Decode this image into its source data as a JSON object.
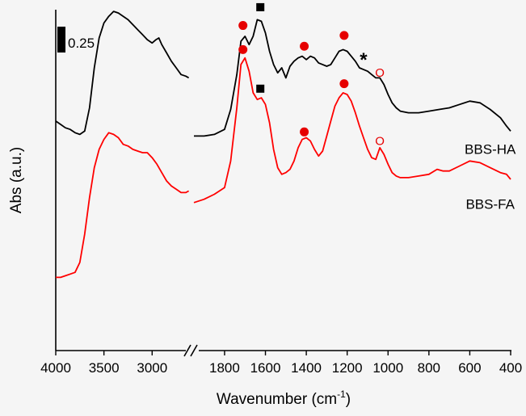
{
  "chart_data": {
    "type": "line",
    "xlabel": "Wavenumber (cm",
    "xlabel_sup": "-1",
    "xlabel_tail": ")",
    "ylabel": "Abs (a.u.)",
    "x_reversed": true,
    "x_break": [
      2600,
      1950
    ],
    "x_segments": [
      {
        "xlim": [
          4000,
          2600
        ],
        "ticks": [
          4000,
          3500,
          3000
        ]
      },
      {
        "xlim": [
          1950,
          400
        ],
        "ticks": [
          1800,
          1600,
          1400,
          1200,
          1000,
          800,
          600,
          400
        ]
      }
    ],
    "y_ticks_shown": false,
    "scale_bar": {
      "label": "0.25",
      "value": 0.25
    },
    "ylim": [
      0.0,
      2.05
    ],
    "series": [
      {
        "name": "BBS-HA",
        "color": "#000000",
        "points": [
          [
            4000,
            1.38
          ],
          [
            3950,
            1.36
          ],
          [
            3900,
            1.34
          ],
          [
            3850,
            1.33
          ],
          [
            3800,
            1.31
          ],
          [
            3750,
            1.3
          ],
          [
            3700,
            1.32
          ],
          [
            3650,
            1.46
          ],
          [
            3600,
            1.7
          ],
          [
            3550,
            1.88
          ],
          [
            3500,
            1.97
          ],
          [
            3450,
            2.01
          ],
          [
            3400,
            2.04
          ],
          [
            3350,
            2.03
          ],
          [
            3300,
            2.01
          ],
          [
            3250,
            1.99
          ],
          [
            3200,
            1.96
          ],
          [
            3150,
            1.93
          ],
          [
            3100,
            1.9
          ],
          [
            3050,
            1.87
          ],
          [
            3000,
            1.85
          ],
          [
            2960,
            1.87
          ],
          [
            2930,
            1.88
          ],
          [
            2900,
            1.84
          ],
          [
            2850,
            1.79
          ],
          [
            2800,
            1.74
          ],
          [
            2750,
            1.7
          ],
          [
            2700,
            1.66
          ],
          [
            2650,
            1.65
          ],
          [
            2620,
            1.64
          ],
          [
            1950,
            1.29
          ],
          [
            1900,
            1.29
          ],
          [
            1850,
            1.3
          ],
          [
            1800,
            1.33
          ],
          [
            1770,
            1.45
          ],
          [
            1740,
            1.66
          ],
          [
            1720,
            1.86
          ],
          [
            1700,
            1.89
          ],
          [
            1680,
            1.84
          ],
          [
            1660,
            1.89
          ],
          [
            1640,
            1.99
          ],
          [
            1620,
            1.98
          ],
          [
            1600,
            1.91
          ],
          [
            1580,
            1.8
          ],
          [
            1560,
            1.72
          ],
          [
            1540,
            1.67
          ],
          [
            1520,
            1.7
          ],
          [
            1500,
            1.64
          ],
          [
            1480,
            1.71
          ],
          [
            1460,
            1.74
          ],
          [
            1440,
            1.76
          ],
          [
            1420,
            1.77
          ],
          [
            1400,
            1.75
          ],
          [
            1380,
            1.77
          ],
          [
            1360,
            1.76
          ],
          [
            1340,
            1.73
          ],
          [
            1320,
            1.72
          ],
          [
            1300,
            1.71
          ],
          [
            1280,
            1.72
          ],
          [
            1260,
            1.76
          ],
          [
            1240,
            1.8
          ],
          [
            1220,
            1.81
          ],
          [
            1200,
            1.8
          ],
          [
            1180,
            1.77
          ],
          [
            1160,
            1.74
          ],
          [
            1140,
            1.7
          ],
          [
            1120,
            1.69
          ],
          [
            1100,
            1.68
          ],
          [
            1080,
            1.66
          ],
          [
            1060,
            1.64
          ],
          [
            1040,
            1.64
          ],
          [
            1020,
            1.6
          ],
          [
            1000,
            1.54
          ],
          [
            980,
            1.49
          ],
          [
            960,
            1.46
          ],
          [
            940,
            1.44
          ],
          [
            900,
            1.43
          ],
          [
            850,
            1.43
          ],
          [
            800,
            1.44
          ],
          [
            750,
            1.45
          ],
          [
            700,
            1.46
          ],
          [
            650,
            1.48
          ],
          [
            600,
            1.5
          ],
          [
            550,
            1.49
          ],
          [
            500,
            1.45
          ],
          [
            450,
            1.4
          ],
          [
            420,
            1.35
          ],
          [
            400,
            1.32
          ]
        ]
      },
      {
        "name": "BBS-FA",
        "color": "#ff0000",
        "points": [
          [
            4000,
            0.44
          ],
          [
            3950,
            0.44
          ],
          [
            3900,
            0.45
          ],
          [
            3850,
            0.46
          ],
          [
            3800,
            0.47
          ],
          [
            3750,
            0.53
          ],
          [
            3700,
            0.7
          ],
          [
            3650,
            0.92
          ],
          [
            3600,
            1.1
          ],
          [
            3550,
            1.21
          ],
          [
            3500,
            1.27
          ],
          [
            3450,
            1.31
          ],
          [
            3400,
            1.3
          ],
          [
            3350,
            1.28
          ],
          [
            3300,
            1.24
          ],
          [
            3250,
            1.23
          ],
          [
            3200,
            1.21
          ],
          [
            3150,
            1.2
          ],
          [
            3100,
            1.19
          ],
          [
            3050,
            1.19
          ],
          [
            3000,
            1.16
          ],
          [
            2950,
            1.12
          ],
          [
            2900,
            1.07
          ],
          [
            2850,
            1.02
          ],
          [
            2800,
            0.99
          ],
          [
            2750,
            0.97
          ],
          [
            2700,
            0.95
          ],
          [
            2650,
            0.95
          ],
          [
            2620,
            0.96
          ],
          [
            1950,
            0.89
          ],
          [
            1900,
            0.91
          ],
          [
            1850,
            0.94
          ],
          [
            1800,
            0.98
          ],
          [
            1770,
            1.14
          ],
          [
            1740,
            1.46
          ],
          [
            1720,
            1.72
          ],
          [
            1700,
            1.76
          ],
          [
            1680,
            1.68
          ],
          [
            1660,
            1.55
          ],
          [
            1640,
            1.51
          ],
          [
            1620,
            1.52
          ],
          [
            1600,
            1.48
          ],
          [
            1580,
            1.37
          ],
          [
            1560,
            1.21
          ],
          [
            1540,
            1.1
          ],
          [
            1520,
            1.06
          ],
          [
            1500,
            1.07
          ],
          [
            1480,
            1.09
          ],
          [
            1460,
            1.14
          ],
          [
            1440,
            1.22
          ],
          [
            1420,
            1.27
          ],
          [
            1400,
            1.28
          ],
          [
            1380,
            1.26
          ],
          [
            1360,
            1.21
          ],
          [
            1340,
            1.17
          ],
          [
            1320,
            1.2
          ],
          [
            1300,
            1.29
          ],
          [
            1280,
            1.38
          ],
          [
            1260,
            1.47
          ],
          [
            1240,
            1.52
          ],
          [
            1220,
            1.55
          ],
          [
            1200,
            1.54
          ],
          [
            1180,
            1.5
          ],
          [
            1160,
            1.43
          ],
          [
            1140,
            1.35
          ],
          [
            1120,
            1.28
          ],
          [
            1100,
            1.21
          ],
          [
            1080,
            1.16
          ],
          [
            1060,
            1.15
          ],
          [
            1040,
            1.22
          ],
          [
            1020,
            1.18
          ],
          [
            1000,
            1.12
          ],
          [
            980,
            1.07
          ],
          [
            960,
            1.05
          ],
          [
            940,
            1.04
          ],
          [
            900,
            1.04
          ],
          [
            850,
            1.05
          ],
          [
            800,
            1.06
          ],
          [
            760,
            1.09
          ],
          [
            730,
            1.08
          ],
          [
            700,
            1.08
          ],
          [
            650,
            1.11
          ],
          [
            600,
            1.14
          ],
          [
            550,
            1.13
          ],
          [
            500,
            1.1
          ],
          [
            450,
            1.07
          ],
          [
            420,
            1.06
          ],
          [
            400,
            1.03
          ]
        ]
      }
    ],
    "series_labels": [
      {
        "text": "BBS-HA",
        "x": 500,
        "y": 1.205,
        "anchor": "middle"
      },
      {
        "text": "BBS-FA",
        "x": 500,
        "y": 0.875,
        "anchor": "middle"
      }
    ],
    "annotations": [
      {
        "type": "circle",
        "color": "#e60000",
        "x": 1710,
        "y": 1.955
      },
      {
        "type": "square",
        "color": "#000000",
        "x": 1625,
        "y": 2.065
      },
      {
        "type": "circle",
        "color": "#e60000",
        "x": 1410,
        "y": 1.83
      },
      {
        "type": "circle",
        "color": "#e60000",
        "x": 1215,
        "y": 1.895
      },
      {
        "type": "text",
        "text": "*",
        "color": "#000000",
        "x": 1120,
        "y": 1.74
      },
      {
        "type": "ring",
        "text": "O",
        "color": "#e60000",
        "x": 1040,
        "y": 1.665
      },
      {
        "type": "circle",
        "color": "#e60000",
        "x": 1710,
        "y": 1.81
      },
      {
        "type": "square",
        "color": "#000000",
        "x": 1625,
        "y": 1.575
      },
      {
        "type": "circle",
        "color": "#e60000",
        "x": 1410,
        "y": 1.315
      },
      {
        "type": "circle",
        "color": "#e60000",
        "x": 1215,
        "y": 1.605
      },
      {
        "type": "ring",
        "text": "O",
        "color": "#e60000",
        "x": 1040,
        "y": 1.255
      }
    ]
  }
}
